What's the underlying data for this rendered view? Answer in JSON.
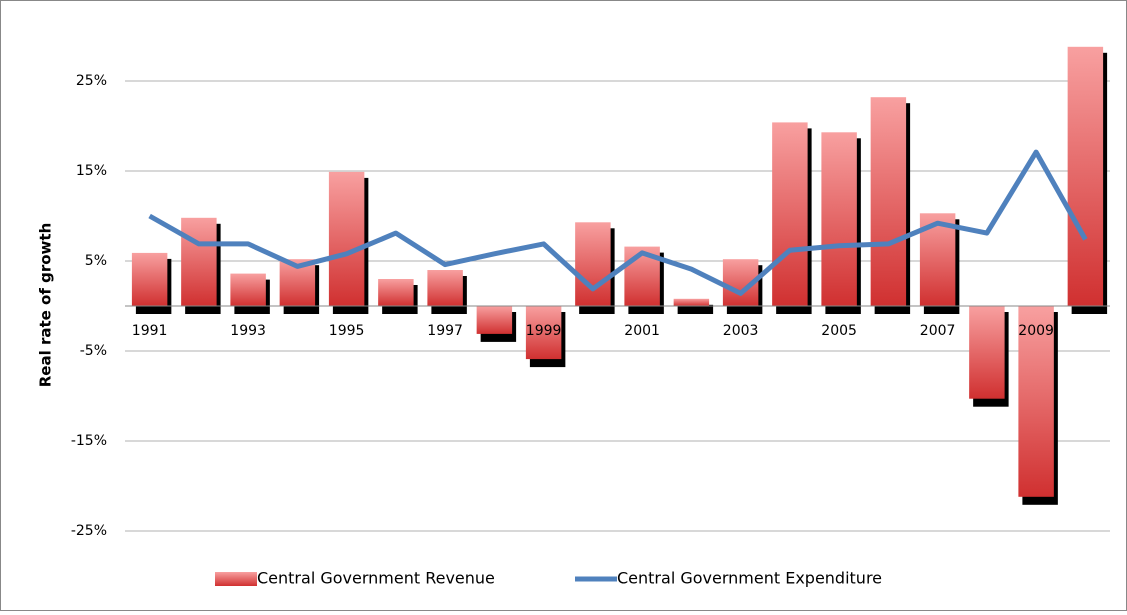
{
  "chart_data": {
    "type": "bar-line",
    "y_label": "Real rate of growth",
    "categories": [
      "1991",
      null,
      "1993",
      null,
      "1995",
      null,
      "1997",
      null,
      "1999",
      null,
      "2001",
      null,
      "2003",
      null,
      "2005",
      null,
      "2007",
      null,
      "2009",
      null
    ],
    "series": [
      {
        "name": "Central Government Revenue",
        "type": "bar",
        "color": "#e05050",
        "values": [
          5.9,
          9.8,
          3.6,
          5.2,
          14.9,
          3.0,
          4.0,
          -3.1,
          -5.9,
          9.3,
          6.6,
          0.8,
          5.2,
          20.4,
          19.3,
          23.2,
          10.3,
          -10.3,
          -21.2,
          28.8
        ]
      },
      {
        "name": "Central Government Expenditure",
        "type": "line",
        "color": "#4f81bd",
        "values": [
          10.0,
          6.9,
          6.9,
          4.4,
          5.8,
          8.1,
          4.6,
          5.8,
          6.9,
          1.9,
          5.9,
          4.1,
          1.4,
          6.2,
          6.7,
          6.9,
          9.2,
          8.1,
          17.1,
          7.4
        ]
      }
    ],
    "ylim": [
      -28,
      29
    ],
    "yticks": [
      {
        "value": -25,
        "label": "-25%"
      },
      {
        "value": -15,
        "label": "-15%"
      },
      {
        "value": -5,
        "label": "-5%"
      },
      {
        "value": 5,
        "label": "5%"
      },
      {
        "value": 15,
        "label": "15%"
      },
      {
        "value": 25,
        "label": "25%"
      }
    ],
    "grid": true,
    "legend": "bottom"
  }
}
